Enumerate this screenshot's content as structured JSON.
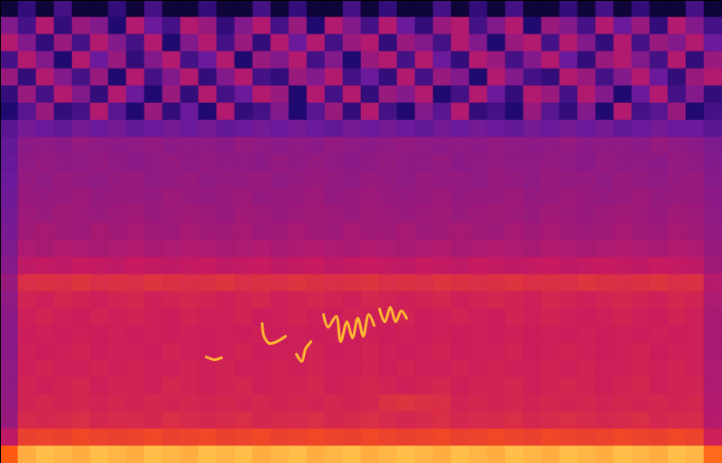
{
  "chart_data": {
    "type": "spectrogram",
    "xlim": [
      0,
      40
    ],
    "ylim": [
      0,
      27
    ],
    "xticks": [],
    "yticks": [],
    "tick_labels": false,
    "zlim": [
      0,
      100
    ],
    "cells": [
      [
        10,
        25,
        10,
        30,
        10,
        10,
        25,
        10,
        30,
        10,
        10,
        25,
        10,
        10,
        30,
        10,
        25,
        10,
        10,
        30,
        10,
        25,
        10,
        10,
        30,
        10,
        25,
        10,
        30,
        10,
        10,
        25,
        10,
        30,
        10,
        25,
        10,
        10,
        30,
        10
      ],
      [
        45,
        30,
        55,
        25,
        50,
        45,
        20,
        55,
        40,
        30,
        55,
        50,
        25,
        45,
        55,
        30,
        50,
        20,
        55,
        45,
        30,
        55,
        40,
        25,
        50,
        55,
        30,
        45,
        55,
        20,
        50,
        45,
        30,
        55,
        40,
        50,
        25,
        55,
        45,
        30
      ],
      [
        55,
        45,
        25,
        50,
        30,
        55,
        45,
        30,
        55,
        20,
        45,
        55,
        30,
        50,
        25,
        55,
        40,
        55,
        30,
        50,
        55,
        25,
        50,
        45,
        30,
        55,
        45,
        20,
        50,
        55,
        30,
        55,
        45,
        25,
        55,
        30,
        50,
        45,
        55,
        40
      ],
      [
        30,
        55,
        45,
        20,
        55,
        40,
        50,
        25,
        45,
        55,
        30,
        40,
        55,
        20,
        50,
        45,
        55,
        30,
        45,
        20,
        50,
        55,
        30,
        55,
        40,
        25,
        55,
        50,
        30,
        45,
        55,
        40,
        25,
        50,
        55,
        45,
        30,
        55,
        25,
        50
      ],
      [
        50,
        25,
        55,
        45,
        30,
        50,
        20,
        55,
        30,
        45,
        55,
        25,
        45,
        55,
        30,
        25,
        50,
        45,
        55,
        30,
        40,
        25,
        55,
        30,
        50,
        45,
        20,
        55,
        45,
        30,
        25,
        55,
        50,
        30,
        45,
        55,
        40,
        25,
        50,
        55
      ],
      [
        25,
        50,
        30,
        55,
        45,
        25,
        55,
        40,
        20,
        50,
        25,
        55,
        30,
        40,
        55,
        50,
        20,
        55,
        30,
        55,
        25,
        50,
        45,
        55,
        20,
        30,
        55,
        40,
        25,
        55,
        50,
        30,
        55,
        45,
        20,
        40,
        55,
        30,
        45,
        25
      ],
      [
        20,
        35,
        50,
        25,
        30,
        55,
        35,
        20,
        50,
        25,
        40,
        20,
        55,
        25,
        30,
        45,
        20,
        35,
        50,
        25,
        55,
        30,
        20,
        45,
        35,
        55,
        25,
        30,
        20,
        50,
        35,
        25,
        45,
        20,
        55,
        30,
        35,
        50,
        20,
        30
      ],
      [
        35,
        42,
        40,
        38,
        42,
        40,
        42,
        38,
        40,
        42,
        40,
        42,
        38,
        40,
        42,
        40,
        42,
        40,
        38,
        42,
        40,
        42,
        40,
        38,
        42,
        40,
        42,
        40,
        38,
        42,
        40,
        42,
        40,
        42,
        38,
        40,
        42,
        40,
        40,
        35
      ],
      [
        38,
        47,
        48,
        47,
        49,
        48,
        47,
        48,
        49,
        47,
        48,
        48,
        47,
        49,
        48,
        47,
        48,
        47,
        49,
        48,
        47,
        48,
        49,
        48,
        47,
        48,
        47,
        49,
        48,
        47,
        48,
        49,
        47,
        48,
        48,
        47,
        49,
        48,
        47,
        44
      ],
      [
        39,
        48,
        49,
        48,
        48,
        49,
        48,
        47,
        48,
        49,
        48,
        49,
        48,
        48,
        47,
        49,
        48,
        49,
        48,
        47,
        48,
        49,
        48,
        48,
        49,
        47,
        48,
        49,
        48,
        48,
        49,
        48,
        47,
        49,
        48,
        48,
        47,
        49,
        48,
        45
      ],
      [
        40,
        49,
        48,
        50,
        49,
        48,
        49,
        50,
        48,
        49,
        50,
        48,
        49,
        49,
        50,
        48,
        49,
        50,
        49,
        48,
        50,
        49,
        48,
        50,
        49,
        49,
        48,
        50,
        49,
        48,
        50,
        49,
        49,
        48,
        50,
        49,
        48,
        49,
        50,
        46
      ],
      [
        41,
        50,
        49,
        50,
        51,
        49,
        50,
        50,
        49,
        51,
        50,
        49,
        50,
        51,
        49,
        50,
        50,
        51,
        49,
        50,
        51,
        50,
        49,
        50,
        51,
        49,
        50,
        50,
        51,
        49,
        50,
        51,
        50,
        49,
        50,
        51,
        49,
        50,
        50,
        47
      ],
      [
        42,
        51,
        50,
        52,
        51,
        50,
        51,
        52,
        50,
        51,
        52,
        51,
        50,
        52,
        51,
        50,
        51,
        52,
        51,
        50,
        52,
        51,
        50,
        51,
        52,
        50,
        51,
        52,
        51,
        50,
        52,
        51,
        50,
        51,
        52,
        51,
        50,
        52,
        51,
        48
      ],
      [
        43,
        52,
        53,
        52,
        51,
        53,
        52,
        53,
        52,
        51,
        53,
        52,
        52,
        53,
        51,
        52,
        53,
        52,
        51,
        53,
        52,
        52,
        53,
        51,
        52,
        53,
        52,
        51,
        53,
        52,
        53,
        52,
        51,
        52,
        53,
        52,
        51,
        53,
        52,
        49
      ],
      [
        44,
        54,
        53,
        55,
        54,
        53,
        54,
        55,
        53,
        54,
        55,
        54,
        53,
        54,
        55,
        53,
        54,
        55,
        54,
        53,
        55,
        54,
        53,
        54,
        55,
        53,
        54,
        55,
        54,
        53,
        55,
        54,
        53,
        54,
        55,
        54,
        53,
        55,
        54,
        50
      ],
      [
        46,
        58,
        59,
        58,
        60,
        59,
        58,
        60,
        59,
        58,
        59,
        60,
        58,
        59,
        60,
        58,
        59,
        60,
        58,
        59,
        60,
        59,
        58,
        60,
        59,
        58,
        60,
        59,
        58,
        59,
        60,
        58,
        59,
        60,
        59,
        58,
        60,
        59,
        58,
        52
      ],
      [
        50,
        66,
        67,
        66,
        68,
        66,
        67,
        66,
        68,
        67,
        66,
        67,
        68,
        66,
        67,
        66,
        68,
        67,
        66,
        67,
        68,
        66,
        67,
        66,
        68,
        67,
        66,
        67,
        68,
        66,
        67,
        66,
        68,
        67,
        66,
        67,
        68,
        66,
        67,
        56
      ],
      [
        48,
        63,
        62,
        64,
        63,
        62,
        63,
        64,
        62,
        63,
        64,
        63,
        62,
        63,
        64,
        62,
        63,
        64,
        63,
        62,
        64,
        63,
        62,
        63,
        64,
        62,
        63,
        64,
        63,
        62,
        64,
        63,
        62,
        63,
        64,
        63,
        62,
        64,
        63,
        54
      ],
      [
        47,
        62,
        63,
        62,
        61,
        63,
        62,
        63,
        62,
        61,
        63,
        62,
        62,
        63,
        61,
        62,
        63,
        62,
        61,
        63,
        62,
        62,
        63,
        61,
        62,
        63,
        62,
        61,
        63,
        62,
        63,
        62,
        61,
        62,
        63,
        62,
        61,
        63,
        62,
        53
      ],
      [
        47,
        61,
        62,
        61,
        62,
        61,
        62,
        61,
        62,
        61,
        62,
        61,
        62,
        61,
        62,
        61,
        62,
        61,
        62,
        61,
        62,
        61,
        62,
        61,
        62,
        61,
        62,
        61,
        62,
        61,
        62,
        61,
        62,
        61,
        62,
        61,
        62,
        61,
        62,
        53
      ],
      [
        47,
        62,
        61,
        62,
        63,
        61,
        62,
        62,
        61,
        63,
        62,
        61,
        62,
        63,
        61,
        62,
        62,
        63,
        61,
        62,
        63,
        62,
        61,
        62,
        63,
        61,
        62,
        62,
        63,
        61,
        62,
        63,
        62,
        61,
        62,
        63,
        61,
        62,
        62,
        53
      ],
      [
        48,
        62,
        63,
        62,
        62,
        63,
        62,
        63,
        62,
        62,
        63,
        62,
        63,
        62,
        62,
        63,
        62,
        63,
        62,
        62,
        63,
        62,
        63,
        62,
        62,
        63,
        62,
        63,
        62,
        62,
        63,
        62,
        63,
        62,
        62,
        63,
        62,
        63,
        62,
        54
      ],
      [
        48,
        63,
        62,
        63,
        64,
        62,
        63,
        63,
        62,
        64,
        63,
        62,
        63,
        64,
        62,
        63,
        63,
        64,
        62,
        63,
        64,
        63,
        62,
        63,
        64,
        62,
        63,
        63,
        64,
        62,
        63,
        64,
        63,
        62,
        63,
        64,
        62,
        63,
        63,
        54
      ],
      [
        49,
        63,
        64,
        63,
        64,
        63,
        64,
        63,
        64,
        63,
        64,
        63,
        64,
        63,
        64,
        63,
        64,
        63,
        64,
        63,
        64,
        67,
        68,
        67,
        66,
        63,
        64,
        63,
        64,
        63,
        64,
        63,
        64,
        63,
        64,
        63,
        64,
        63,
        64,
        55
      ],
      [
        50,
        65,
        64,
        65,
        66,
        64,
        65,
        65,
        64,
        66,
        65,
        64,
        65,
        66,
        64,
        65,
        65,
        66,
        64,
        65,
        66,
        65,
        64,
        65,
        66,
        64,
        65,
        65,
        66,
        64,
        65,
        66,
        65,
        64,
        65,
        66,
        64,
        65,
        65,
        56
      ],
      [
        58,
        72,
        73,
        72,
        74,
        73,
        72,
        73,
        74,
        72,
        73,
        74,
        72,
        73,
        74,
        72,
        73,
        74,
        73,
        72,
        74,
        73,
        72,
        73,
        74,
        72,
        73,
        74,
        73,
        72,
        74,
        73,
        72,
        73,
        74,
        73,
        72,
        74,
        73,
        62
      ],
      [
        80,
        90,
        92,
        91,
        90,
        92,
        91,
        90,
        92,
        91,
        90,
        92,
        91,
        92,
        90,
        91,
        92,
        90,
        91,
        92,
        90,
        91,
        92,
        91,
        90,
        92,
        91,
        90,
        92,
        91,
        90,
        92,
        91,
        90,
        92,
        91,
        90,
        92,
        91,
        82
      ]
    ],
    "series": [
      {
        "type": "line",
        "color": "#ffb830",
        "x": [
          11.4,
          11.85,
          12.25,
          12.3,
          14.5,
          14.6,
          14.9,
          15.3,
          15.8,
          16.0,
          16.4,
          16.7,
          16.9,
          17.2,
          17.5,
          17.9,
          18.15,
          18.6,
          18.85,
          19.2,
          19.5,
          19.8,
          20.1,
          20.4,
          20.7,
          20.85,
          21.0,
          21.3,
          21.6,
          21.9,
          22.2,
          22.5
        ],
        "values": [
          6.21,
          6.05,
          6.16,
          null,
          8.16,
          7.42,
          7.0,
          7.1,
          7.42,
          null,
          6.37,
          5.95,
          6.68,
          7.11,
          null,
          8.68,
          7.95,
          8.58,
          7.11,
          8.26,
          7.32,
          8.47,
          7.42,
          8.68,
          8.05,
          null,
          9.0,
          8.26,
          9.1,
          8.26,
          8.89,
          8.47
        ]
      }
    ]
  }
}
